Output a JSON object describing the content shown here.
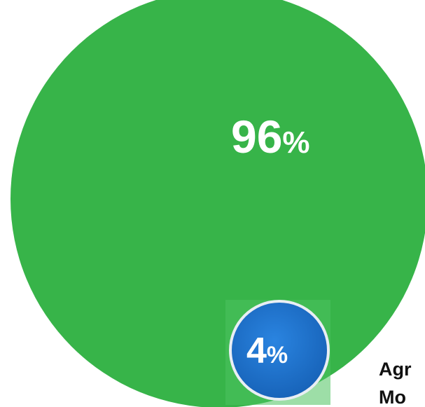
{
  "chart_data": {
    "type": "pie",
    "slices": [
      {
        "label_prefix": "Agr",
        "value": 96,
        "display": "96",
        "symbol": "%",
        "color": "#37b449"
      },
      {
        "label_prefix": "Mo",
        "value": 4,
        "display": "4",
        "symbol": "%",
        "color": "#1a6fc9"
      }
    ],
    "legend_fragments": [
      "Agr",
      "Mo"
    ]
  },
  "colors": {
    "major": "#37b449",
    "major_ring": "#4cc25e",
    "minor": "#1a6fc9",
    "minor_ring": "#e9eef4",
    "text_light": "#ffffff",
    "text_dark": "#111111"
  }
}
